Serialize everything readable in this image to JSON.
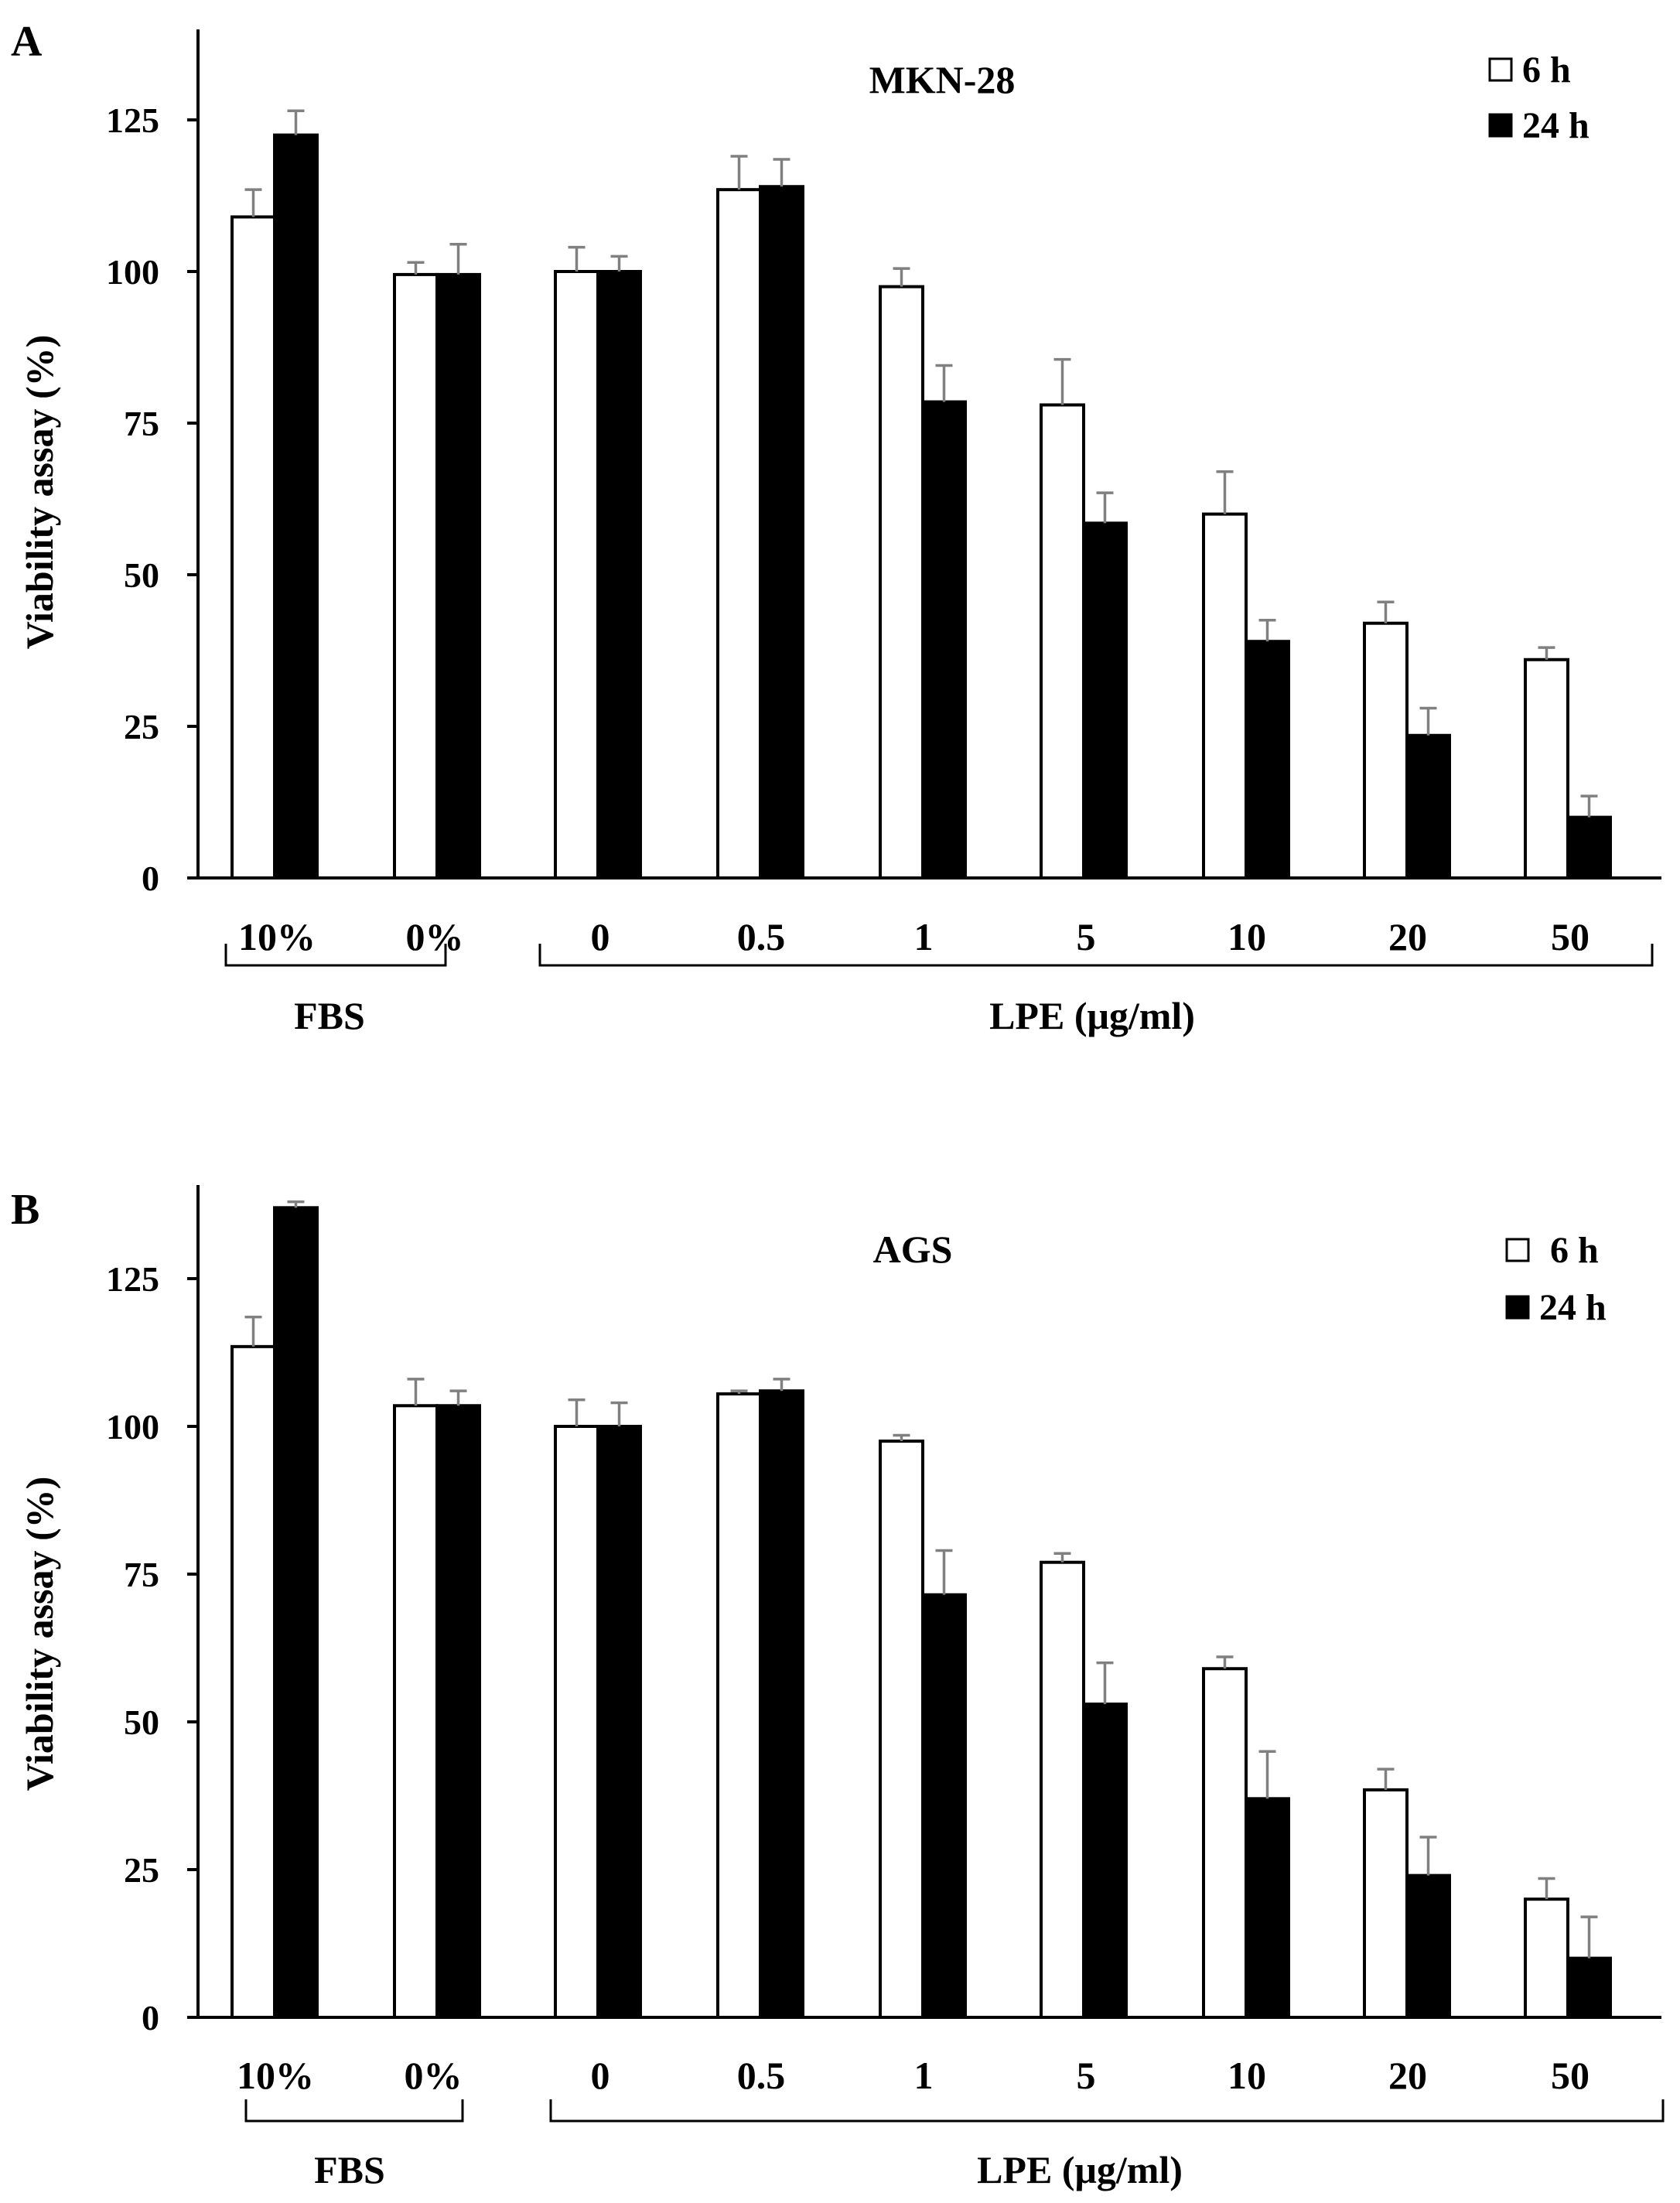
{
  "chart_data": [
    {
      "panel_label": "A",
      "type": "bar",
      "title": "MKN-28",
      "ylabel": "Viability assay (%)",
      "xlabel": "",
      "ylim": [
        0,
        140
      ],
      "yticks": [
        0,
        25,
        50,
        75,
        100,
        125
      ],
      "categories": [
        "10%",
        "0%",
        "0",
        "0.5",
        "1",
        "5",
        "10",
        "20",
        "50"
      ],
      "groups": [
        {
          "label": "FBS",
          "start": 0,
          "end": 1
        },
        {
          "label": "LPE (μg/ml)",
          "start": 2,
          "end": 8
        }
      ],
      "legend_position": "top-right",
      "series": [
        {
          "name": "6 h",
          "color": "#ffffff",
          "values": [
            109,
            99.5,
            100,
            113.5,
            97.5,
            78,
            60,
            42,
            36
          ],
          "errors": [
            4.5,
            2,
            4,
            5.5,
            3,
            7.5,
            7,
            3.5,
            2
          ]
        },
        {
          "name": "24 h",
          "color": "#000000",
          "values": [
            122.5,
            99.5,
            100,
            114,
            78.5,
            58.5,
            39,
            23.5,
            10
          ],
          "errors": [
            4,
            5,
            2.5,
            4.5,
            6,
            5,
            3.5,
            4.5,
            3.5
          ]
        }
      ]
    },
    {
      "panel_label": "B",
      "type": "bar",
      "title": "AGS",
      "ylabel": "Viability assay (%)",
      "xlabel": "",
      "ylim": [
        0,
        140
      ],
      "yticks": [
        0,
        25,
        50,
        75,
        100,
        125
      ],
      "categories": [
        "10%",
        "0%",
        "0",
        "0.5",
        "1",
        "5",
        "10",
        "20",
        "50"
      ],
      "groups": [
        {
          "label": "FBS",
          "start": 0,
          "end": 1
        },
        {
          "label": "LPE (μg/ml)",
          "start": 2,
          "end": 8
        }
      ],
      "legend_position": "top-right",
      "series": [
        {
          "name": "6 h",
          "color": "#ffffff",
          "values": [
            113.5,
            103.5,
            100,
            105.5,
            97.5,
            77,
            59,
            38.5,
            20
          ],
          "errors": [
            5,
            4.5,
            4.5,
            0.5,
            1,
            1.5,
            2,
            3.5,
            3.5
          ]
        },
        {
          "name": "24 h",
          "color": "#000000",
          "values": [
            137,
            103.5,
            100,
            106,
            71.5,
            53,
            37,
            24,
            10
          ],
          "errors": [
            1,
            2.5,
            4,
            2,
            7.5,
            7,
            8,
            6.5,
            7
          ]
        }
      ]
    }
  ]
}
